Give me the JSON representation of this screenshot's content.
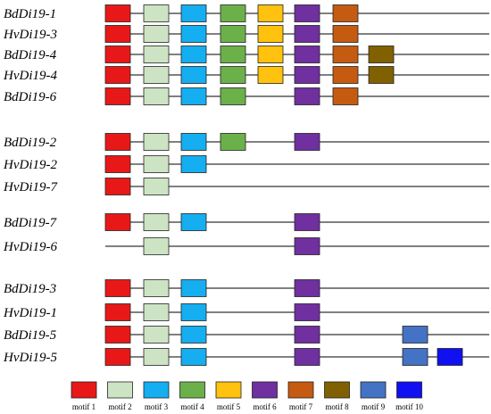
{
  "motifs": [
    {
      "id": 1,
      "label": "motif 1",
      "color": "#e81818"
    },
    {
      "id": 2,
      "label": "motif 2",
      "color": "#cde4c4"
    },
    {
      "id": 3,
      "label": "motif 3",
      "color": "#15aef0"
    },
    {
      "id": 4,
      "label": "motif 4",
      "color": "#6cb04a"
    },
    {
      "id": 5,
      "label": "motif 5",
      "color": "#ffc20e"
    },
    {
      "id": 6,
      "label": "motif 6",
      "color": "#7030a0"
    },
    {
      "id": 7,
      "label": "motif 7",
      "color": "#c55a11"
    },
    {
      "id": 8,
      "label": "motif 8",
      "color": "#806000"
    },
    {
      "id": 9,
      "label": "motif 9",
      "color": "#4472c4"
    },
    {
      "id": 10,
      "label": "motif 10",
      "color": "#1010f0"
    }
  ],
  "genes": [
    {
      "name": "BdDi19-1",
      "motifs": [
        1,
        2,
        3,
        4,
        5,
        6,
        7
      ]
    },
    {
      "name": "HvDi19-3",
      "motifs": [
        1,
        2,
        3,
        4,
        5,
        6,
        7
      ]
    },
    {
      "name": "BdDi19-4",
      "motifs": [
        1,
        2,
        3,
        4,
        5,
        6,
        7,
        8
      ]
    },
    {
      "name": "HvDi19-4",
      "motifs": [
        1,
        2,
        3,
        4,
        5,
        6,
        7,
        8
      ]
    },
    {
      "name": "BdDi19-6",
      "motifs": [
        1,
        2,
        3,
        4,
        6,
        7
      ]
    },
    {
      "name": "BdDi19-2",
      "motifs": [
        1,
        2,
        3,
        4,
        6
      ]
    },
    {
      "name": "HvDi19-2",
      "motifs": [
        1,
        2,
        3
      ]
    },
    {
      "name": "HvDi19-7",
      "motifs": [
        1,
        2
      ]
    },
    {
      "name": "BdDi19-7",
      "motifs": [
        1,
        2,
        3,
        6
      ]
    },
    {
      "name": "HvDi19-6",
      "motifs": [
        2,
        6
      ]
    },
    {
      "name": "BdDi19-3",
      "motifs": [
        1,
        2,
        3,
        6
      ]
    },
    {
      "name": "HvDi19-1",
      "motifs": [
        1,
        2,
        3,
        6
      ]
    },
    {
      "name": "BdDi19-5",
      "motifs": [
        1,
        2,
        3,
        6,
        9
      ]
    },
    {
      "name": "HvDi19-5",
      "motifs": [
        1,
        2,
        3,
        6,
        9,
        10
      ]
    }
  ]
}
